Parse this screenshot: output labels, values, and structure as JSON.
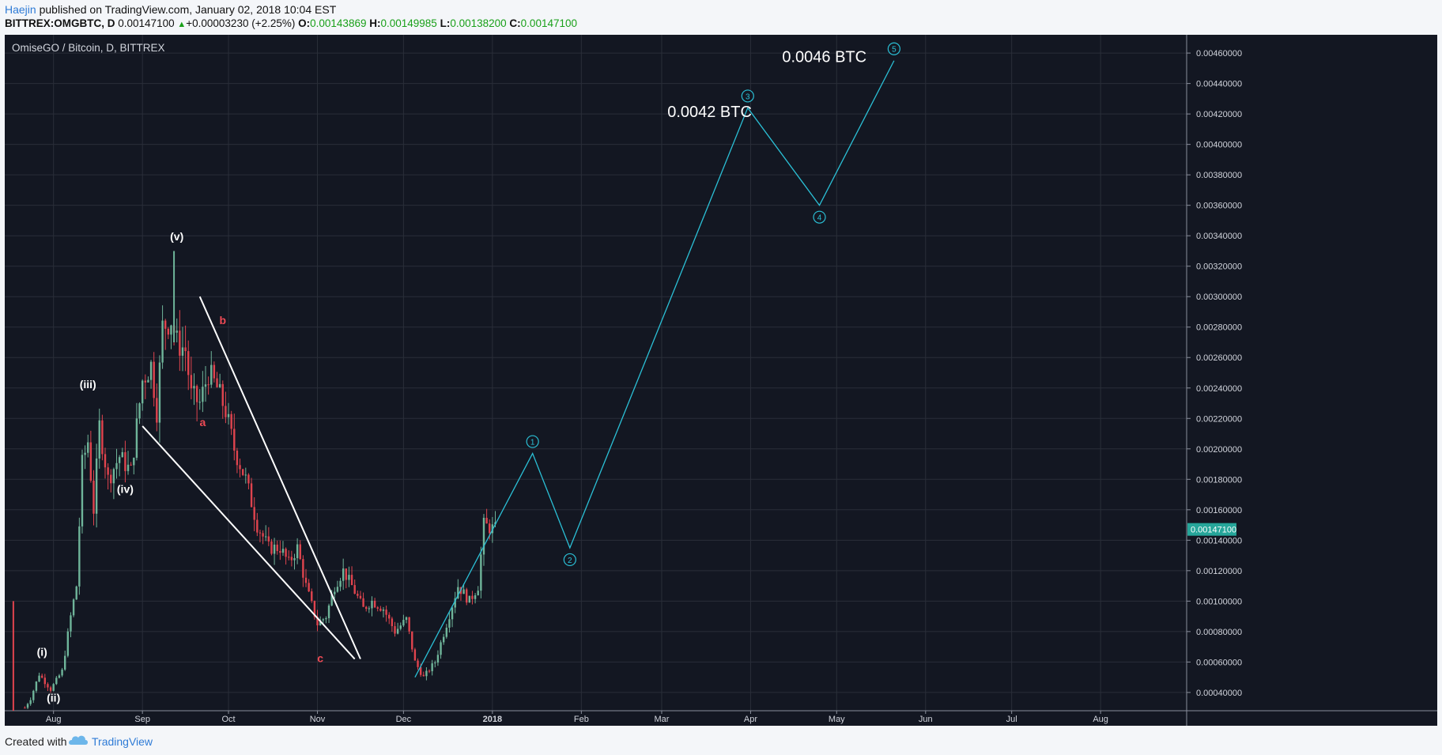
{
  "header": {
    "author": "Haejin",
    "published_text": "published on TradingView.com, January 02, 2018 10:04 EST",
    "symbol_text": "BITTREX:OMGBTC, D",
    "last_price": "0.00147100",
    "change_arrow": "▲",
    "change_text": "+0.00003230 (+2.25%)",
    "o_label": "O:",
    "o_value": "0.00143869",
    "h_label": "H:",
    "h_value": "0.00149985",
    "l_label": "L:",
    "l_value": "0.00138200",
    "c_label": "C:",
    "c_value": "0.00147100"
  },
  "chart": {
    "legend": "OmiseGO / Bitcoin, D, BITTREX",
    "price_tag": "0.00147100"
  },
  "footer": {
    "created_with": "Created with",
    "brand": "TradingView"
  },
  "colors": {
    "background": "#131722",
    "grid": "#2a2e39",
    "up_candle": "#6fb59a",
    "down_candle": "#e0444e",
    "projection": "#2bc0d6",
    "trendline": "#ffffff",
    "wave_label_white": "#ffffff",
    "wave_label_red": "#ef4a55",
    "price_tag": "#26a69a"
  },
  "chart_data": {
    "type": "candlestick",
    "symbol": "OMGBTC",
    "timeframe": "D",
    "y_axis": {
      "min": 0.00028,
      "max": 0.00472,
      "ticks": [
        "0.00040000",
        "0.00060000",
        "0.00080000",
        "0.00100000",
        "0.00120000",
        "0.00140000",
        "0.00160000",
        "0.00180000",
        "0.00200000",
        "0.00220000",
        "0.00240000",
        "0.00260000",
        "0.00280000",
        "0.00300000",
        "0.00320000",
        "0.00340000",
        "0.00360000",
        "0.00380000",
        "0.00400000",
        "0.00420000",
        "0.00440000",
        "0.00460000"
      ]
    },
    "x_axis": {
      "start_date": "2017-07-15",
      "end_date": "2018-08-31",
      "ticks": [
        {
          "date": "2017-08-01",
          "label": "Aug",
          "bold": false
        },
        {
          "date": "2017-09-01",
          "label": "Sep",
          "bold": false
        },
        {
          "date": "2017-10-01",
          "label": "Oct",
          "bold": false
        },
        {
          "date": "2017-11-01",
          "label": "Nov",
          "bold": false
        },
        {
          "date": "2017-12-01",
          "label": "Dec",
          "bold": false
        },
        {
          "date": "2018-01-01",
          "label": "2018",
          "bold": true
        },
        {
          "date": "2018-02-01",
          "label": "Feb",
          "bold": false
        },
        {
          "date": "2018-03-01",
          "label": "Mar",
          "bold": false
        },
        {
          "date": "2018-04-01",
          "label": "Apr",
          "bold": false
        },
        {
          "date": "2018-05-01",
          "label": "May",
          "bold": false
        },
        {
          "date": "2018-06-01",
          "label": "Jun",
          "bold": false
        },
        {
          "date": "2018-07-01",
          "label": "Jul",
          "bold": false
        },
        {
          "date": "2018-08-01",
          "label": "Aug",
          "bold": false
        }
      ]
    },
    "price_path": [
      [
        "2017-07-22",
        0.0003
      ],
      [
        "2017-07-24",
        0.00036
      ],
      [
        "2017-07-27",
        0.00052
      ],
      [
        "2017-07-31",
        0.00042
      ],
      [
        "2017-08-04",
        0.00054
      ],
      [
        "2017-08-07",
        0.0009
      ],
      [
        "2017-08-09",
        0.0011
      ],
      [
        "2017-08-11",
        0.0019
      ],
      [
        "2017-08-13",
        0.00205
      ],
      [
        "2017-08-15",
        0.0016
      ],
      [
        "2017-08-17",
        0.00215
      ],
      [
        "2017-08-20",
        0.0018
      ],
      [
        "2017-08-24",
        0.00195
      ],
      [
        "2017-08-28",
        0.00185
      ],
      [
        "2017-09-01",
        0.00245
      ],
      [
        "2017-09-04",
        0.00255
      ],
      [
        "2017-09-06",
        0.00225
      ],
      [
        "2017-09-08",
        0.0028
      ],
      [
        "2017-09-11",
        0.00285
      ],
      [
        "2017-09-13",
        0.0027
      ],
      [
        "2017-09-16",
        0.00265
      ],
      [
        "2017-09-18",
        0.00235
      ],
      [
        "2017-09-21",
        0.0023
      ],
      [
        "2017-09-24",
        0.0025
      ],
      [
        "2017-09-27",
        0.0024
      ],
      [
        "2017-09-30",
        0.00225
      ],
      [
        "2017-10-03",
        0.002
      ],
      [
        "2017-10-07",
        0.0018
      ],
      [
        "2017-10-11",
        0.0015
      ],
      [
        "2017-10-15",
        0.00135
      ],
      [
        "2017-10-19",
        0.00135
      ],
      [
        "2017-10-22",
        0.00125
      ],
      [
        "2017-10-25",
        0.00135
      ],
      [
        "2017-10-28",
        0.0011
      ],
      [
        "2017-11-01",
        0.00085
      ],
      [
        "2017-11-04",
        0.0009
      ],
      [
        "2017-11-07",
        0.0011
      ],
      [
        "2017-11-10",
        0.0012
      ],
      [
        "2017-11-13",
        0.0011
      ],
      [
        "2017-11-17",
        0.00095
      ],
      [
        "2017-11-20",
        0.001
      ],
      [
        "2017-11-24",
        0.00095
      ],
      [
        "2017-11-28",
        0.0008
      ],
      [
        "2017-12-02",
        0.00088
      ],
      [
        "2017-12-05",
        0.0006
      ],
      [
        "2017-12-08",
        0.0005
      ],
      [
        "2017-12-12",
        0.0006
      ],
      [
        "2017-12-16",
        0.00085
      ],
      [
        "2017-12-20",
        0.0011
      ],
      [
        "2017-12-24",
        0.001
      ],
      [
        "2017-12-27",
        0.0011
      ],
      [
        "2017-12-29",
        0.0015
      ],
      [
        "2018-01-02",
        0.00147
      ]
    ],
    "spikes": [
      {
        "date": "2017-07-18",
        "high": 0.001,
        "low": 0.00028,
        "direction": "down"
      },
      {
        "date": "2017-09-12",
        "high": 0.0033,
        "low": 0.0027,
        "direction": "up"
      }
    ],
    "projection": {
      "points": [
        {
          "date": "2017-12-05",
          "value": 0.0005,
          "label": ""
        },
        {
          "date": "2018-01-15",
          "value": 0.00197,
          "label": "1"
        },
        {
          "date": "2018-01-28",
          "value": 0.00135,
          "label": "2"
        },
        {
          "date": "2018-03-31",
          "value": 0.00424,
          "label": "3"
        },
        {
          "date": "2018-04-25",
          "value": 0.0036,
          "label": "4"
        },
        {
          "date": "2018-05-21",
          "value": 0.00455,
          "label": "5"
        }
      ],
      "annotations": [
        {
          "text": "0.0042 BTC",
          "date": "2018-03-03",
          "value": 0.00418
        },
        {
          "text": "0.0046 BTC",
          "date": "2018-04-12",
          "value": 0.00454
        }
      ]
    },
    "trendlines": [
      {
        "from": [
          "2017-09-21",
          0.003
        ],
        "to": [
          "2017-11-16",
          0.00062
        ]
      },
      {
        "from": [
          "2017-09-01",
          0.00215
        ],
        "to": [
          "2017-11-14",
          0.00062
        ]
      }
    ],
    "wave_labels": [
      {
        "text": "(i)",
        "date": "2017-07-28",
        "value": 0.00064,
        "color": "white"
      },
      {
        "text": "(ii)",
        "date": "2017-08-01",
        "value": 0.00034,
        "color": "white"
      },
      {
        "text": "(iii)",
        "date": "2017-08-13",
        "value": 0.0024,
        "color": "white"
      },
      {
        "text": "(iv)",
        "date": "2017-08-26",
        "value": 0.00171,
        "color": "white"
      },
      {
        "text": "(v)",
        "date": "2017-09-13",
        "value": 0.00337,
        "color": "white"
      },
      {
        "text": "a",
        "date": "2017-09-22",
        "value": 0.00215,
        "color": "red"
      },
      {
        "text": "b",
        "date": "2017-09-29",
        "value": 0.00282,
        "color": "red"
      },
      {
        "text": "c",
        "date": "2017-11-02",
        "value": 0.0006,
        "color": "red"
      }
    ]
  }
}
